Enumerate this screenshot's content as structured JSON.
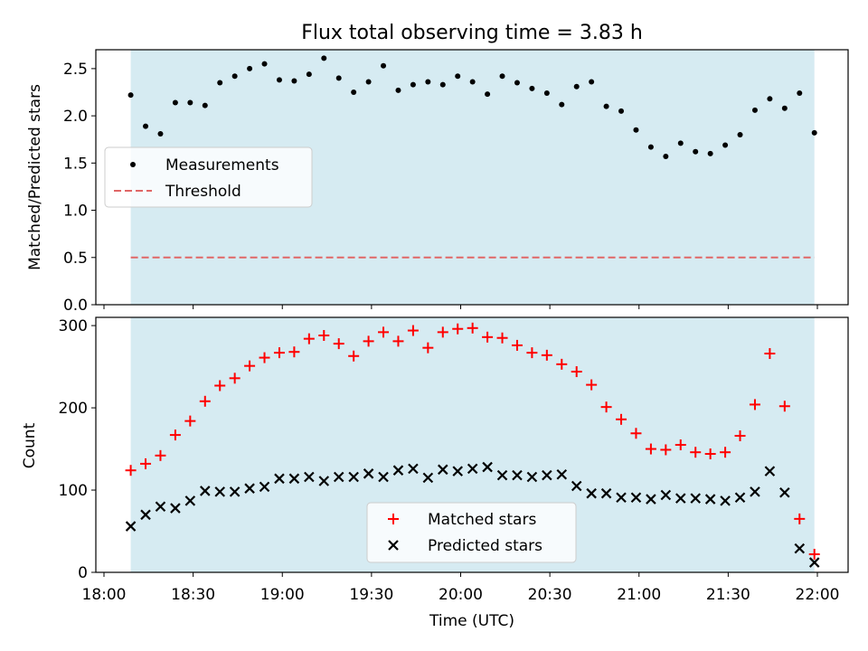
{
  "title": "Flux total observing time = 3.83 h",
  "colors": {
    "band": "#add8e6",
    "threshold": "#e06666",
    "matched": "#ff0000",
    "predicted": "#000000",
    "measurements": "#000000"
  },
  "chart_data": [
    {
      "type": "scatter",
      "panel": "top",
      "ylabel": "Matched/Predicted stars",
      "xlabel": "",
      "xlim": [
        "18:00",
        "22:00"
      ],
      "ylim": [
        0,
        2.7
      ],
      "yticks": [
        0.0,
        0.5,
        1.0,
        1.5,
        2.0,
        2.5
      ],
      "ytick_labels": [
        "0.0",
        "0.5",
        "1.0",
        "1.5",
        "2.0",
        "2.5"
      ],
      "observing_band": [
        "18:09",
        "21:59"
      ],
      "legend": {
        "location": "center-left",
        "entries": [
          "Measurements",
          "Threshold"
        ]
      },
      "threshold": {
        "name": "Threshold",
        "value": 0.5
      },
      "series": [
        {
          "name": "Measurements",
          "marker": "dot",
          "x": [
            "18:09",
            "18:14",
            "18:19",
            "18:24",
            "18:29",
            "18:34",
            "18:39",
            "18:44",
            "18:49",
            "18:54",
            "18:59",
            "19:04",
            "19:09",
            "19:14",
            "19:19",
            "19:24",
            "19:29",
            "19:34",
            "19:39",
            "19:44",
            "19:49",
            "19:54",
            "19:59",
            "20:04",
            "20:09",
            "20:14",
            "20:19",
            "20:24",
            "20:29",
            "20:34",
            "20:39",
            "20:44",
            "20:49",
            "20:54",
            "20:59",
            "21:04",
            "21:09",
            "21:14",
            "21:19",
            "21:24",
            "21:29",
            "21:34",
            "21:39",
            "21:44",
            "21:49",
            "21:54",
            "21:59"
          ],
          "values": [
            2.22,
            1.89,
            1.81,
            2.14,
            2.14,
            2.11,
            2.35,
            2.42,
            2.5,
            2.55,
            2.38,
            2.37,
            2.44,
            2.61,
            2.4,
            2.25,
            2.36,
            2.53,
            2.27,
            2.33,
            2.36,
            2.33,
            2.42,
            2.36,
            2.23,
            2.42,
            2.35,
            2.29,
            2.24,
            2.12,
            2.31,
            2.36,
            2.1,
            2.05,
            1.85,
            1.67,
            1.57,
            1.71,
            1.62,
            1.6,
            1.69,
            1.8,
            2.06,
            2.18,
            2.08,
            2.24,
            1.82
          ]
        }
      ]
    },
    {
      "type": "scatter",
      "panel": "bottom",
      "ylabel": "Count",
      "xlabel": "Time (UTC)",
      "xlim": [
        "18:00",
        "22:00"
      ],
      "ylim": [
        0,
        310
      ],
      "yticks": [
        0,
        100,
        200,
        300
      ],
      "ytick_labels": [
        "0",
        "100",
        "200",
        "300"
      ],
      "xticks": [
        "18:00",
        "18:30",
        "19:00",
        "19:30",
        "20:00",
        "20:30",
        "21:00",
        "21:30",
        "22:00"
      ],
      "xtick_labels": [
        "18:00",
        "18:30",
        "19:00",
        "19:30",
        "20:00",
        "20:30",
        "21:00",
        "21:30",
        "22:00"
      ],
      "observing_band": [
        "18:09",
        "21:59"
      ],
      "legend": {
        "location": "bottom-center",
        "entries": [
          "Matched stars",
          "Predicted stars"
        ]
      },
      "x": [
        "18:09",
        "18:14",
        "18:19",
        "18:24",
        "18:29",
        "18:34",
        "18:39",
        "18:44",
        "18:49",
        "18:54",
        "18:59",
        "19:04",
        "19:09",
        "19:14",
        "19:19",
        "19:24",
        "19:29",
        "19:34",
        "19:39",
        "19:44",
        "19:49",
        "19:54",
        "19:59",
        "20:04",
        "20:09",
        "20:14",
        "20:19",
        "20:24",
        "20:29",
        "20:34",
        "20:39",
        "20:44",
        "20:49",
        "20:54",
        "20:59",
        "21:04",
        "21:09",
        "21:14",
        "21:19",
        "21:24",
        "21:29",
        "21:34",
        "21:39",
        "21:44",
        "21:49",
        "21:54",
        "21:59"
      ],
      "series": [
        {
          "name": "Matched stars",
          "marker": "plus",
          "values": [
            124,
            132,
            142,
            167,
            184,
            208,
            227,
            236,
            251,
            261,
            267,
            268,
            284,
            288,
            278,
            263,
            281,
            292,
            281,
            294,
            273,
            292,
            296,
            297,
            286,
            285,
            276,
            267,
            264,
            253,
            244,
            228,
            201,
            186,
            169,
            150,
            149,
            155,
            146,
            144,
            146,
            166,
            204,
            266,
            202,
            65,
            22
          ]
        },
        {
          "name": "Predicted stars",
          "marker": "x",
          "values": [
            56,
            70,
            80,
            78,
            87,
            99,
            98,
            98,
            102,
            104,
            114,
            114,
            116,
            111,
            116,
            116,
            120,
            116,
            124,
            126,
            115,
            125,
            123,
            126,
            128,
            118,
            118,
            116,
            118,
            119,
            105,
            96,
            96,
            91,
            91,
            89,
            94,
            90,
            90,
            89,
            87,
            91,
            98,
            123,
            97,
            29,
            12
          ]
        }
      ]
    }
  ]
}
